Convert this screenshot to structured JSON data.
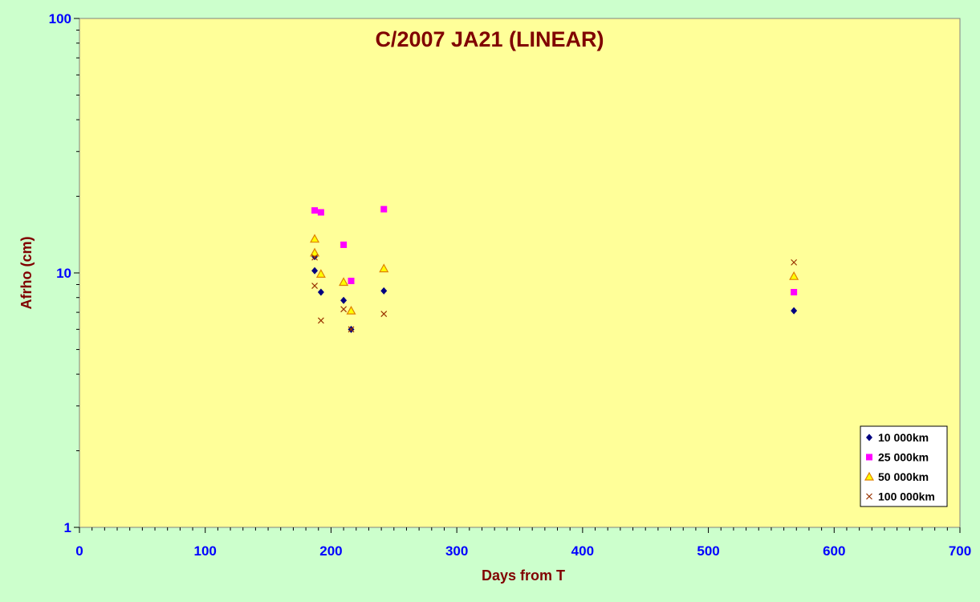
{
  "chart_data": {
    "type": "scatter",
    "title": "C/2007 JA21 (LINEAR)",
    "xlabel": "Days from T",
    "ylabel": "Afrho (cm)",
    "xlim": [
      0,
      700
    ],
    "ylim": [
      1,
      100
    ],
    "yscale": "log",
    "x_ticks": [
      "0",
      "100",
      "200",
      "300",
      "400",
      "500",
      "600",
      "700"
    ],
    "y_ticks": [
      "1",
      "10",
      "100"
    ],
    "grid": false,
    "legend_position": "bottom-right",
    "series": [
      {
        "name": "10 000km",
        "marker": "diamond",
        "color": "#000080",
        "points": [
          [
            187,
            11.6
          ],
          [
            187,
            10.2
          ],
          [
            192,
            8.4
          ],
          [
            210,
            7.8
          ],
          [
            216,
            6.0
          ],
          [
            242,
            8.5
          ],
          [
            568,
            7.1
          ]
        ]
      },
      {
        "name": "25 000km",
        "marker": "square",
        "color": "#ff00ff",
        "points": [
          [
            187,
            17.6
          ],
          [
            192,
            17.3
          ],
          [
            210,
            12.9
          ],
          [
            216,
            9.3
          ],
          [
            242,
            17.8
          ],
          [
            568,
            8.4
          ]
        ]
      },
      {
        "name": "50 000km",
        "marker": "triangle",
        "color": "#ffff00",
        "stroke": "#e08000",
        "points": [
          [
            187,
            13.6
          ],
          [
            187,
            12.0
          ],
          [
            192,
            9.9
          ],
          [
            210,
            9.2
          ],
          [
            216,
            7.1
          ],
          [
            242,
            10.4
          ],
          [
            568,
            9.7
          ]
        ]
      },
      {
        "name": "100 000km",
        "marker": "x",
        "color": "#993300",
        "points": [
          [
            187,
            11.5
          ],
          [
            187,
            8.9
          ],
          [
            192,
            6.5
          ],
          [
            210,
            7.2
          ],
          [
            216,
            6.0
          ],
          [
            242,
            6.9
          ],
          [
            568,
            11.0
          ]
        ]
      }
    ]
  },
  "colors": {
    "page_background": "#ccffcc",
    "plot_background": "#ffff99",
    "axis_text": "#0000ff",
    "title_text": "#800000"
  }
}
